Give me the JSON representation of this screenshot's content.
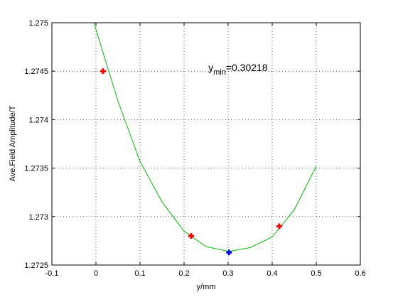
{
  "chart_data": {
    "type": "line",
    "xlabel": "y/mm",
    "ylabel": "Ave.Field Amplitude/T",
    "xlim": [
      -0.1,
      0.6
    ],
    "ylim": [
      1.2725,
      1.275
    ],
    "x_ticks": [
      -0.1,
      0,
      0.1,
      0.2,
      0.3,
      0.4,
      0.5,
      0.6
    ],
    "x_tick_labels": [
      "-0.1",
      "0",
      "0.1",
      "0.2",
      "0.3",
      "0.4",
      "0.5",
      "0.6"
    ],
    "y_ticks": [
      1.2725,
      1.273,
      1.2735,
      1.274,
      1.2745,
      1.275
    ],
    "y_tick_labels": [
      "1.2725",
      "1.273",
      "1.2735",
      "1.274",
      "1.2745",
      "1.275"
    ],
    "grid": true,
    "series": [
      {
        "kind": "curve",
        "color": "#00c000",
        "x": [
          -0.0045,
          0.0,
          0.05,
          0.1,
          0.15,
          0.2,
          0.25,
          0.302,
          0.35,
          0.4,
          0.45,
          0.5
        ],
        "y": [
          1.275,
          1.27493,
          1.27419,
          1.27357,
          1.27315,
          1.27285,
          1.27269,
          1.27264,
          1.27268,
          1.27279,
          1.27307,
          1.27352
        ]
      },
      {
        "kind": "points",
        "color": "#ff0000",
        "marker": "plus",
        "x": [
          0.016,
          0.216,
          0.416
        ],
        "y": [
          1.2745,
          1.2728,
          1.2729
        ]
      },
      {
        "kind": "points",
        "color": "#0000ff",
        "marker": "plus",
        "x": [
          0.302
        ],
        "y": [
          1.27263
        ]
      }
    ],
    "annotation": {
      "label_main": "y",
      "label_sub": "min",
      "label_value": "=0.30218",
      "x": 0.255,
      "y": 1.2745
    }
  }
}
